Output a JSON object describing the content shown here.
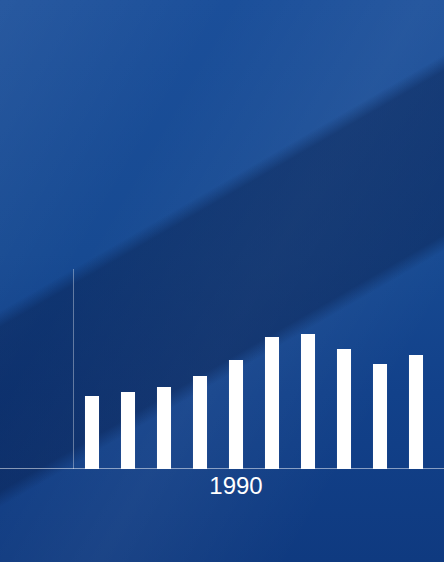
{
  "chart_data": {
    "type": "bar",
    "categories": [
      null,
      null,
      null,
      null,
      "1990",
      null,
      null,
      null,
      null,
      null
    ],
    "values": [
      73,
      77,
      82,
      93,
      109,
      132,
      135,
      120,
      105,
      114
    ],
    "color": "#ffffff",
    "ylim": [
      0,
      200
    ],
    "yticks": [],
    "grid": false,
    "tick_labels": "x"
  }
}
